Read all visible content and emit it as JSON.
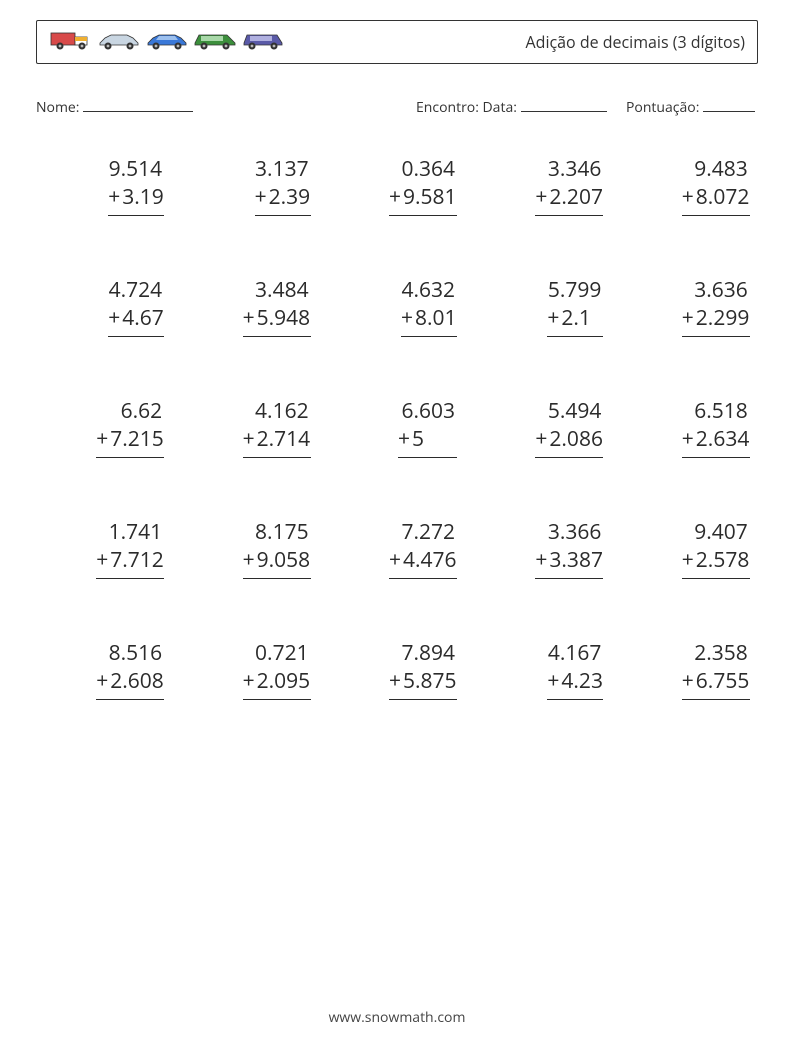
{
  "header": {
    "title": "Adição de decimais (3 dígitos)",
    "vehicles": [
      {
        "body": "#d84a4a",
        "cab": "#ffffff",
        "wheel": "#333333",
        "accent": "#f0b030",
        "kind": "truck"
      },
      {
        "body": "#c9d6e2",
        "cab": "#8aa8c0",
        "wheel": "#333333",
        "accent": "#c9d6e2",
        "kind": "sedan"
      },
      {
        "body": "#3a78d8",
        "cab": "#3a78d8",
        "wheel": "#333333",
        "accent": "#9cc0ef",
        "kind": "sedan"
      },
      {
        "body": "#3c8f3c",
        "cab": "#3c8f3c",
        "wheel": "#333333",
        "accent": "#a8d8a8",
        "kind": "wagon"
      },
      {
        "body": "#5a5aa8",
        "cab": "#5a5aa8",
        "wheel": "#333333",
        "accent": "#b0b0e0",
        "kind": "suv"
      }
    ]
  },
  "meta": {
    "name_label": "Nome:",
    "date_label": "Encontro: Data:",
    "score_label": "Pontuação:",
    "name_line_w": 110,
    "date_line_w": 86,
    "score_line_w": 52
  },
  "worksheet": {
    "type": "math-addition-vertical",
    "columns": 5,
    "problems": [
      {
        "a": "9.514",
        "b": "3.19"
      },
      {
        "a": "3.137",
        "b": "2.39"
      },
      {
        "a": "0.364",
        "b": "9.581"
      },
      {
        "a": "3.346",
        "b": "2.207"
      },
      {
        "a": "9.483",
        "b": "8.072"
      },
      {
        "a": "4.724",
        "b": "4.67"
      },
      {
        "a": "3.484",
        "b": "5.948"
      },
      {
        "a": "4.632",
        "b": "8.01"
      },
      {
        "a": "5.799",
        "b": "2.1"
      },
      {
        "a": "3.636",
        "b": "2.299"
      },
      {
        "a": "6.62",
        "b": "7.215"
      },
      {
        "a": "4.162",
        "b": "2.714"
      },
      {
        "a": "6.603",
        "b": "5"
      },
      {
        "a": "5.494",
        "b": "2.086"
      },
      {
        "a": "6.518",
        "b": "2.634"
      },
      {
        "a": "1.741",
        "b": "7.712"
      },
      {
        "a": "8.175",
        "b": "9.058"
      },
      {
        "a": "7.272",
        "b": "4.476"
      },
      {
        "a": "3.366",
        "b": "3.387"
      },
      {
        "a": "9.407",
        "b": "2.578"
      },
      {
        "a": "8.516",
        "b": "2.608"
      },
      {
        "a": "0.721",
        "b": "2.095"
      },
      {
        "a": "7.894",
        "b": "5.875"
      },
      {
        "a": "4.167",
        "b": "4.23"
      },
      {
        "a": "2.358",
        "b": "6.755"
      }
    ],
    "operator": "+",
    "number_fontsize": 21,
    "text_color": "#2b2b2b",
    "underline_color": "#2b2b2b"
  },
  "footer": {
    "text": "www.snowmath.com"
  }
}
